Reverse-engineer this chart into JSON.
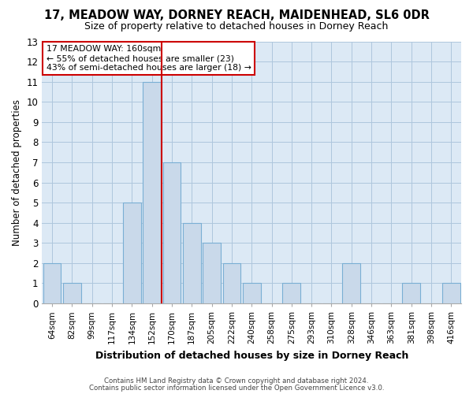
{
  "title": "17, MEADOW WAY, DORNEY REACH, MAIDENHEAD, SL6 0DR",
  "subtitle": "Size of property relative to detached houses in Dorney Reach",
  "xlabel": "Distribution of detached houses by size in Dorney Reach",
  "ylabel": "Number of detached properties",
  "bar_labels": [
    "64sqm",
    "82sqm",
    "99sqm",
    "117sqm",
    "134sqm",
    "152sqm",
    "170sqm",
    "187sqm",
    "205sqm",
    "222sqm",
    "240sqm",
    "258sqm",
    "275sqm",
    "293sqm",
    "310sqm",
    "328sqm",
    "346sqm",
    "363sqm",
    "381sqm",
    "398sqm",
    "416sqm"
  ],
  "bar_values": [
    2,
    1,
    0,
    0,
    5,
    11,
    7,
    4,
    3,
    2,
    1,
    0,
    1,
    0,
    0,
    2,
    0,
    0,
    1,
    0,
    1
  ],
  "bar_color": "#c9d9ea",
  "bar_edge_color": "#7aafd4",
  "plot_bg_color": "#dce9f5",
  "vline_x": 5.5,
  "vline_color": "#cc0000",
  "ylim": [
    0,
    13
  ],
  "yticks": [
    0,
    1,
    2,
    3,
    4,
    5,
    6,
    7,
    8,
    9,
    10,
    11,
    12,
    13
  ],
  "annotation_title": "17 MEADOW WAY: 160sqm",
  "annotation_line1": "← 55% of detached houses are smaller (23)",
  "annotation_line2": "43% of semi-detached houses are larger (18) →",
  "annotation_box_color": "#ffffff",
  "annotation_box_edge": "#cc0000",
  "footer1": "Contains HM Land Registry data © Crown copyright and database right 2024.",
  "footer2": "Contains public sector information licensed under the Open Government Licence v3.0.",
  "background_color": "#ffffff",
  "grid_color": "#aec6dd",
  "title_fontsize": 10.5,
  "subtitle_fontsize": 9
}
